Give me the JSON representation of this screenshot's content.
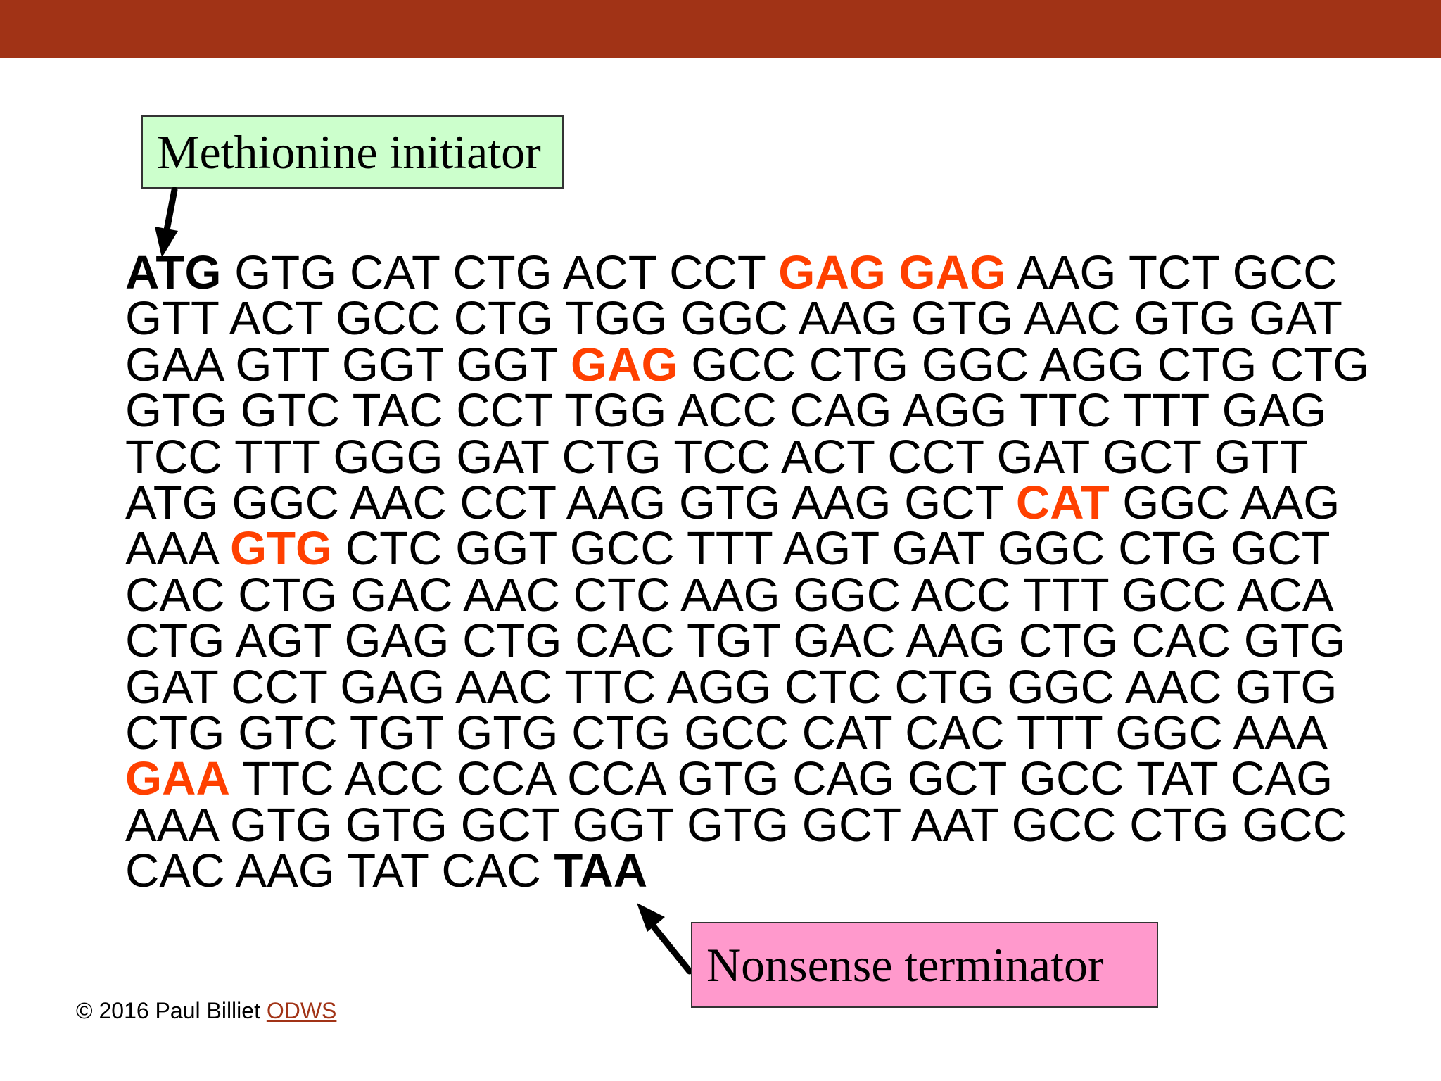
{
  "colors": {
    "header_bar": "#a13316",
    "highlight_codon": "#ff4000",
    "initiator_box": "#ccffcc",
    "terminator_box": "#ff99cc",
    "link": "#a13316"
  },
  "callouts": {
    "initiator": "Methionine initiator",
    "terminator": "Nonsense terminator"
  },
  "sequence": {
    "lines": [
      [
        {
          "text": "ATG",
          "style": "start"
        },
        {
          "text": "GTG"
        },
        {
          "text": "CAT"
        },
        {
          "text": "CTG"
        },
        {
          "text": "ACT"
        },
        {
          "text": "CCT"
        },
        {
          "text": "GAG",
          "style": "highlight"
        },
        {
          "text": "GAG",
          "style": "highlight"
        },
        {
          "text": "AAG"
        },
        {
          "text": "TCT"
        },
        {
          "text": "GCC"
        }
      ],
      [
        {
          "text": "GTT"
        },
        {
          "text": "ACT"
        },
        {
          "text": "GCC"
        },
        {
          "text": "CTG"
        },
        {
          "text": "TGG"
        },
        {
          "text": "GGC"
        },
        {
          "text": "AAG"
        },
        {
          "text": "GTG"
        },
        {
          "text": "AAC"
        },
        {
          "text": "GTG"
        },
        {
          "text": "GAT"
        }
      ],
      [
        {
          "text": "GAA"
        },
        {
          "text": "GTT"
        },
        {
          "text": "GGT"
        },
        {
          "text": "GGT"
        },
        {
          "text": "GAG",
          "style": "highlight"
        },
        {
          "text": "GCC"
        },
        {
          "text": "CTG"
        },
        {
          "text": "GGC"
        },
        {
          "text": "AGG"
        },
        {
          "text": "CTG"
        },
        {
          "text": "CTG"
        }
      ],
      [
        {
          "text": "GTG"
        },
        {
          "text": "GTC"
        },
        {
          "text": "TAC"
        },
        {
          "text": "CCT"
        },
        {
          "text": "TGG"
        },
        {
          "text": "ACC"
        },
        {
          "text": "CAG"
        },
        {
          "text": "AGG"
        },
        {
          "text": "TTC"
        },
        {
          "text": "TTT"
        },
        {
          "text": "GAG"
        }
      ],
      [
        {
          "text": "TCC"
        },
        {
          "text": "TTT"
        },
        {
          "text": "GGG"
        },
        {
          "text": "GAT"
        },
        {
          "text": "CTG"
        },
        {
          "text": "TCC"
        },
        {
          "text": "ACT"
        },
        {
          "text": "CCT"
        },
        {
          "text": "GAT"
        },
        {
          "text": "GCT"
        },
        {
          "text": "GTT"
        }
      ],
      [
        {
          "text": "ATG"
        },
        {
          "text": "GGC"
        },
        {
          "text": "AAC"
        },
        {
          "text": "CCT"
        },
        {
          "text": "AAG"
        },
        {
          "text": "GTG"
        },
        {
          "text": "AAG"
        },
        {
          "text": "GCT"
        },
        {
          "text": "CAT",
          "style": "highlight"
        },
        {
          "text": "GGC"
        },
        {
          "text": "AAG"
        }
      ],
      [
        {
          "text": "AAA"
        },
        {
          "text": "GTG",
          "style": "highlight"
        },
        {
          "text": "CTC"
        },
        {
          "text": "GGT"
        },
        {
          "text": "GCC"
        },
        {
          "text": "TTT"
        },
        {
          "text": "AGT"
        },
        {
          "text": "GAT"
        },
        {
          "text": "GGC"
        },
        {
          "text": "CTG"
        },
        {
          "text": "GCT"
        }
      ],
      [
        {
          "text": "CAC"
        },
        {
          "text": "CTG"
        },
        {
          "text": "GAC"
        },
        {
          "text": "AAC"
        },
        {
          "text": "CTC"
        },
        {
          "text": "AAG"
        },
        {
          "text": "GGC"
        },
        {
          "text": "ACC"
        },
        {
          "text": "TTT"
        },
        {
          "text": "GCC"
        },
        {
          "text": "ACA"
        }
      ],
      [
        {
          "text": "CTG"
        },
        {
          "text": "AGT"
        },
        {
          "text": "GAG"
        },
        {
          "text": "CTG"
        },
        {
          "text": "CAC"
        },
        {
          "text": "TGT"
        },
        {
          "text": "GAC"
        },
        {
          "text": "AAG"
        },
        {
          "text": "CTG"
        },
        {
          "text": "CAC"
        },
        {
          "text": "GTG"
        }
      ],
      [
        {
          "text": "GAT"
        },
        {
          "text": "CCT"
        },
        {
          "text": "GAG"
        },
        {
          "text": "AAC"
        },
        {
          "text": "TTC"
        },
        {
          "text": "AGG"
        },
        {
          "text": "CTC"
        },
        {
          "text": "CTG"
        },
        {
          "text": "GGC"
        },
        {
          "text": "AAC"
        },
        {
          "text": "GTG"
        }
      ],
      [
        {
          "text": "CTG"
        },
        {
          "text": "GTC"
        },
        {
          "text": "TGT"
        },
        {
          "text": "GTG"
        },
        {
          "text": "CTG"
        },
        {
          "text": "GCC"
        },
        {
          "text": "CAT"
        },
        {
          "text": "CAC"
        },
        {
          "text": "TTT"
        },
        {
          "text": "GGC"
        },
        {
          "text": "AAA"
        }
      ],
      [
        {
          "text": "GAA",
          "style": "highlight"
        },
        {
          "text": "TTC"
        },
        {
          "text": "ACC"
        },
        {
          "text": "CCA"
        },
        {
          "text": "CCA"
        },
        {
          "text": "GTG"
        },
        {
          "text": "CAG"
        },
        {
          "text": "GCT"
        },
        {
          "text": "GCC"
        },
        {
          "text": "TAT"
        },
        {
          "text": "CAG"
        }
      ],
      [
        {
          "text": "AAA"
        },
        {
          "text": "GTG"
        },
        {
          "text": "GTG"
        },
        {
          "text": "GCT"
        },
        {
          "text": "GGT"
        },
        {
          "text": "GTG"
        },
        {
          "text": "GCT"
        },
        {
          "text": "AAT"
        },
        {
          "text": "GCC"
        },
        {
          "text": "CTG"
        },
        {
          "text": "GCC"
        }
      ],
      [
        {
          "text": "CAC"
        },
        {
          "text": "AAG"
        },
        {
          "text": "TAT"
        },
        {
          "text": "CAC"
        },
        {
          "text": "TAA",
          "style": "stop"
        }
      ]
    ]
  },
  "footer": {
    "copyright": "© 2016 Paul Billiet",
    "link": "ODWS"
  }
}
